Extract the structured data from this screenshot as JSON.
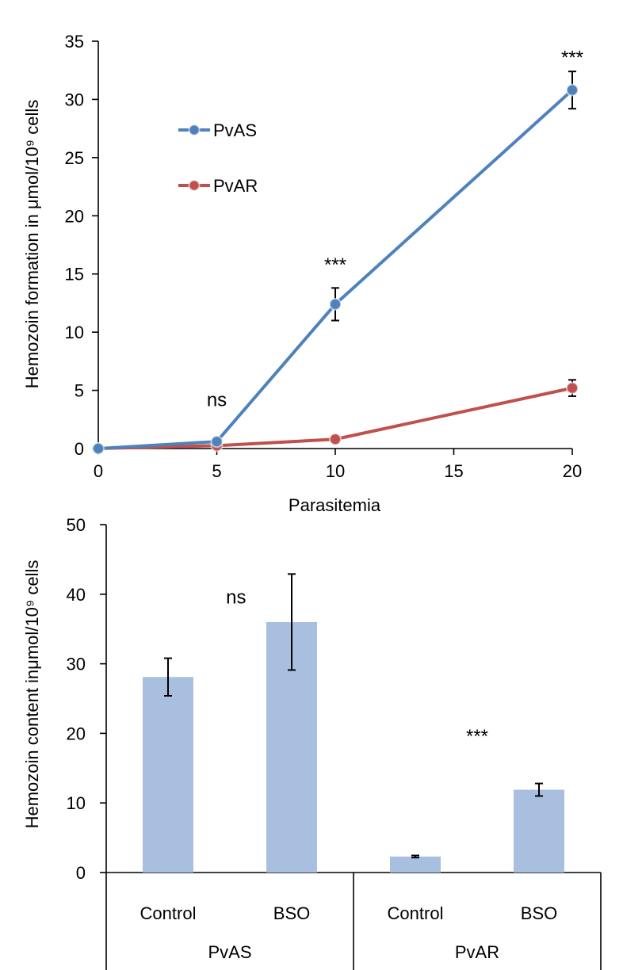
{
  "chart_data": [
    {
      "type": "line",
      "title": "",
      "xlabel": "Parasitemia",
      "ylabel": "Hemozoin formation in μmol/10⁹ cells",
      "xlim": [
        0,
        20
      ],
      "ylim": [
        0,
        35
      ],
      "xticks": [
        0,
        5,
        10,
        15,
        20
      ],
      "yticks": [
        0,
        5,
        10,
        15,
        20,
        25,
        30,
        35
      ],
      "grid": false,
      "legend_position": "top-left",
      "series": [
        {
          "name": "PvAS",
          "color": "#4f81bd",
          "points": [
            {
              "x": 0,
              "y": 0
            },
            {
              "x": 5,
              "y": 0.6
            },
            {
              "x": 10,
              "y": 12.4,
              "err": 1.4
            },
            {
              "x": 20,
              "y": 30.8,
              "err": 1.6
            }
          ]
        },
        {
          "name": "PvAR",
          "color": "#c0504d",
          "points": [
            {
              "x": 0,
              "y": 0
            },
            {
              "x": 5,
              "y": 0.25
            },
            {
              "x": 10,
              "y": 0.8
            },
            {
              "x": 20,
              "y": 5.2,
              "err": 0.7
            }
          ]
        }
      ],
      "annotations": [
        {
          "text": "ns",
          "x": 5,
          "y": 4.2
        },
        {
          "text": "***",
          "x": 10,
          "y": 15.8
        },
        {
          "text": "***",
          "x": 20,
          "y": 33.6
        }
      ]
    },
    {
      "type": "bar",
      "title": "",
      "xlabel": "",
      "ylabel": "Hemozoin content inμmol/10⁹ cells",
      "ylim": [
        0,
        50
      ],
      "yticks": [
        0,
        10,
        20,
        30,
        40,
        50
      ],
      "grid": false,
      "bar_color": "#a9bfdf",
      "categories": [
        "Control",
        "BSO",
        "Control",
        "BSO"
      ],
      "groups": [
        {
          "label": "PvAS",
          "span": [
            0,
            1
          ]
        },
        {
          "label": "PvAR",
          "span": [
            2,
            3
          ]
        }
      ],
      "values": [
        28.1,
        36.0,
        2.3,
        11.9
      ],
      "errors": [
        2.7,
        6.9,
        0.15,
        0.9
      ],
      "annotations": [
        {
          "text": "ns",
          "group": "PvAS",
          "y": 39.6
        },
        {
          "text": "***",
          "group": "PvAR",
          "y": 19.6
        }
      ]
    }
  ]
}
